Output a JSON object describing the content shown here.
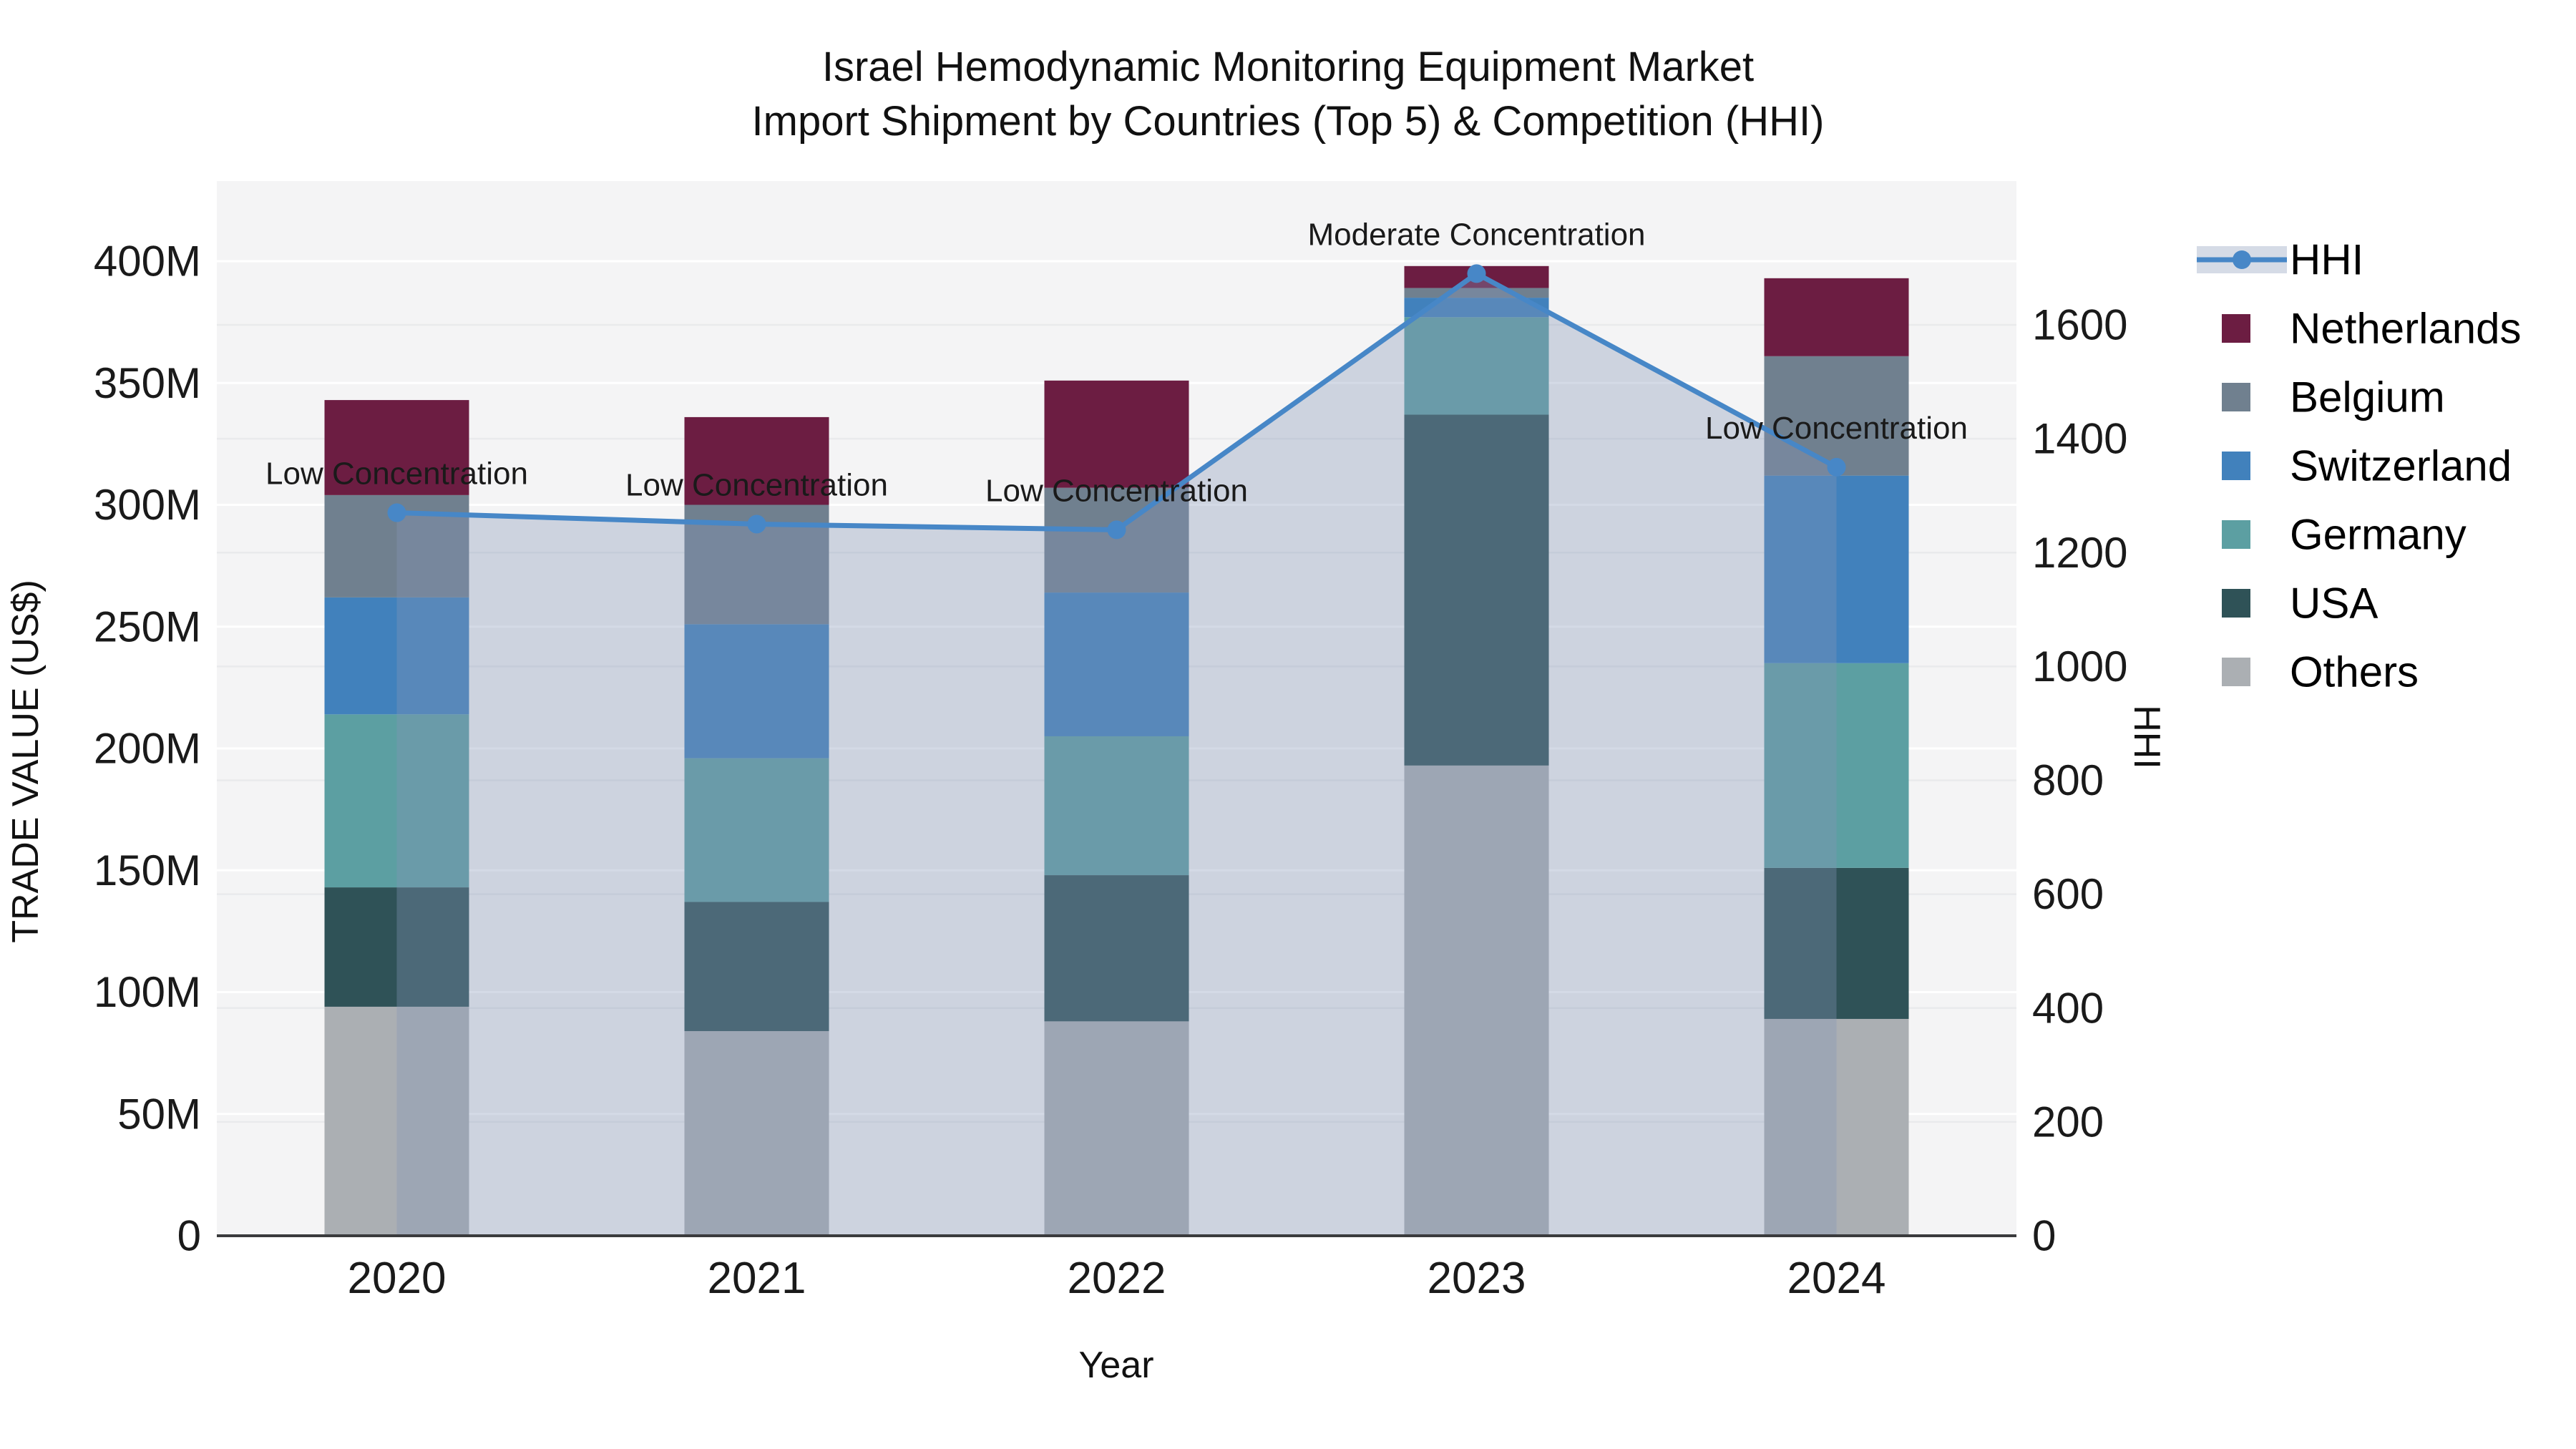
{
  "title": {
    "line1": "Israel Hemodynamic Monitoring Equipment Market",
    "line2": "Import Shipment by Countries (Top 5) & Competition (HHI)"
  },
  "axes": {
    "left": {
      "title": "TRADE VALUE (US$)",
      "ticks": [
        {
          "value": 0,
          "label": "0"
        },
        {
          "value": 50,
          "label": "50M"
        },
        {
          "value": 100,
          "label": "100M"
        },
        {
          "value": 150,
          "label": "150M"
        },
        {
          "value": 200,
          "label": "200M"
        },
        {
          "value": 250,
          "label": "250M"
        },
        {
          "value": 300,
          "label": "300M"
        },
        {
          "value": 350,
          "label": "350M"
        },
        {
          "value": 400,
          "label": "400M"
        }
      ],
      "max": 400
    },
    "right": {
      "title": "HHI",
      "ticks": [
        {
          "value": 0,
          "label": "0"
        },
        {
          "value": 200,
          "label": "200"
        },
        {
          "value": 400,
          "label": "400"
        },
        {
          "value": 600,
          "label": "600"
        },
        {
          "value": 800,
          "label": "800"
        },
        {
          "value": 1000,
          "label": "1000"
        },
        {
          "value": 1200,
          "label": "1200"
        },
        {
          "value": 1400,
          "label": "1400"
        },
        {
          "value": 1600,
          "label": "1600"
        }
      ],
      "max": 1600
    },
    "x": {
      "title": "Year"
    }
  },
  "legend": [
    {
      "name": "HHI",
      "type": "line"
    },
    {
      "name": "Netherlands",
      "type": "swatch",
      "color": "#6C1D42"
    },
    {
      "name": "Belgium",
      "type": "swatch",
      "color": "#70808F"
    },
    {
      "name": "Switzerland",
      "type": "swatch",
      "color": "#4181BC"
    },
    {
      "name": "Germany",
      "type": "swatch",
      "color": "#5C9FA2"
    },
    {
      "name": "USA",
      "type": "swatch",
      "color": "#2F5257"
    },
    {
      "name": "Others",
      "type": "swatch",
      "color": "#ABAFB3"
    }
  ],
  "colors": {
    "plot_bg": "#F4F4F5",
    "grid_left": "#FFFFFF",
    "grid_right": "#E9EAEC",
    "baseline": "#3A3B3D",
    "hhi_line": "#4787C7",
    "hhi_area_rgb": "132,149,182",
    "hhi_area_alpha": "0.35",
    "legend_hhi_band": "#D5DBE6",
    "text": "#1A1A1A"
  },
  "chart_data": {
    "type": "bar",
    "subtype": "stacked-bars-with-line",
    "title": "Israel Hemodynamic Monitoring Equipment Market — Import Shipment by Countries (Top 5) & Competition (HHI)",
    "categories": [
      "2020",
      "2021",
      "2022",
      "2023",
      "2024"
    ],
    "value_unit": "Million US$",
    "series": [
      {
        "name": "Others",
        "color": "#ABAFB3",
        "values": [
          94,
          84,
          88,
          193,
          89
        ]
      },
      {
        "name": "USA",
        "color": "#2F5257",
        "values": [
          49,
          53,
          60,
          144,
          62
        ]
      },
      {
        "name": "Germany",
        "color": "#5C9FA2",
        "values": [
          71,
          59,
          57,
          40,
          84
        ]
      },
      {
        "name": "Switzerland",
        "color": "#4181BC",
        "values": [
          48,
          55,
          59,
          8,
          77
        ]
      },
      {
        "name": "Belgium",
        "color": "#70808F",
        "values": [
          42,
          49,
          43,
          4,
          49
        ]
      },
      {
        "name": "Netherlands",
        "color": "#6C1D42",
        "values": [
          39,
          36,
          44,
          9,
          32
        ]
      }
    ],
    "bar_totals": [
      343,
      336,
      351,
      398,
      393
    ],
    "line": {
      "name": "HHI",
      "axis": "right",
      "values": [
        1270,
        1250,
        1240,
        1690,
        1350
      ]
    },
    "annotations": [
      {
        "category": "2020",
        "text": "Low Concentration"
      },
      {
        "category": "2021",
        "text": "Low Concentration"
      },
      {
        "category": "2022",
        "text": "Low Concentration"
      },
      {
        "category": "2023",
        "text": "Moderate Concentration"
      },
      {
        "category": "2024",
        "text": "Low Concentration"
      }
    ],
    "xlabel": "Year",
    "ylabel_left": "TRADE VALUE (US$)",
    "ylabel_right": "HHI",
    "ylim_left": [
      0,
      400
    ],
    "ylim_right": [
      0,
      1600
    ],
    "grid": true,
    "legend_position": "right"
  }
}
